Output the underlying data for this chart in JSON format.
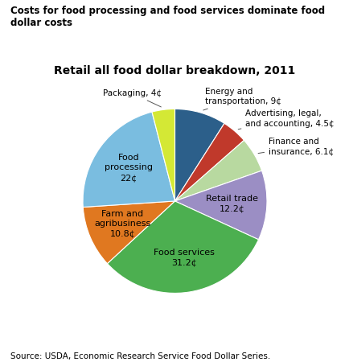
{
  "title": "Costs for food processing and food services dominate food dollar costs",
  "subtitle": "Retail all food dollar breakdown, 2011",
  "source": "Source: USDA, Economic Research Service Food Dollar Series.",
  "slices": [
    {
      "label": "Energy and\ntransportation, 9¢",
      "value": 9.0,
      "color": "#2c5f8a",
      "inside": false
    },
    {
      "label": "Advertising, legal,\nand accounting, 4.5¢",
      "value": 4.5,
      "color": "#c0392b",
      "inside": false
    },
    {
      "label": "Finance and\ninsurance, 6.1¢",
      "value": 6.1,
      "color": "#b8d9a0",
      "inside": false
    },
    {
      "label": "Retail trade\n12.2¢",
      "value": 12.2,
      "color": "#9b8ec4",
      "inside": true
    },
    {
      "label": "Food services\n31.2¢",
      "value": 31.2,
      "color": "#4caf50",
      "inside": true
    },
    {
      "label": "Farm and\nagribusiness\n10.8¢",
      "value": 10.8,
      "color": "#e07820",
      "inside": true
    },
    {
      "label": "Food\nprocessing\n22¢",
      "value": 22.0,
      "color": "#7abde0",
      "inside": true
    },
    {
      "label": "Packaging, 4¢",
      "value": 4.0,
      "color": "#d4e835",
      "inside": false
    }
  ],
  "background_color": "#ffffff",
  "title_fontsize": 8.5,
  "subtitle_fontsize": 10
}
